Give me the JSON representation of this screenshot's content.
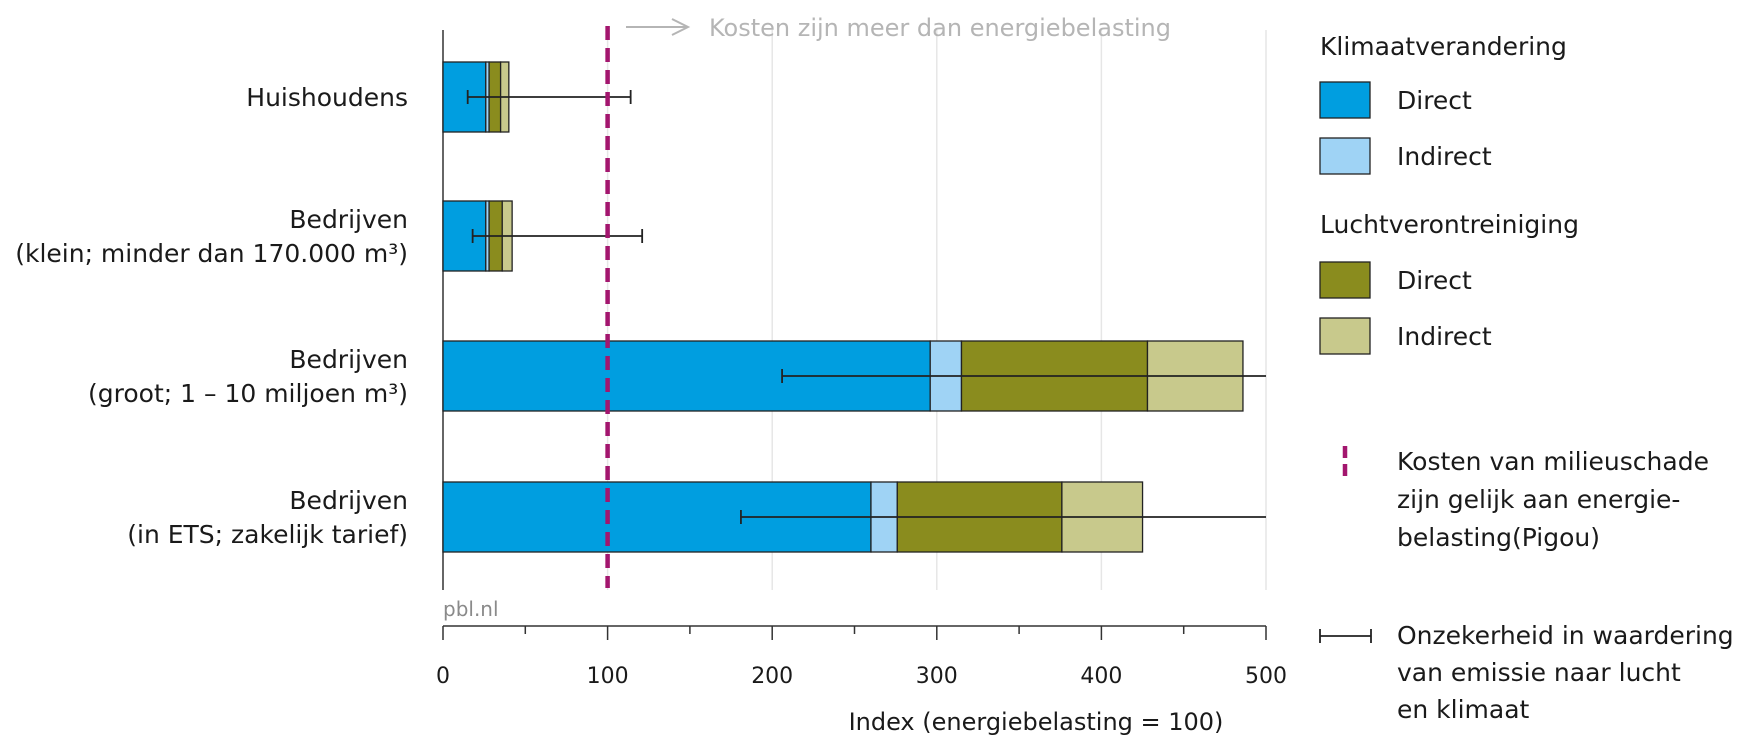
{
  "chart_data": {
    "type": "bar",
    "orientation": "horizontal",
    "stacked": true,
    "categories": [
      [
        "Huishoudens"
      ],
      [
        "Bedrijven",
        "(klein; minder dan 170.000 m³)"
      ],
      [
        "Bedrijven",
        "(groot; 1 – 10 miljoen m³)"
      ],
      [
        "Bedrijven",
        "(in ETS; zakelijk tarief)"
      ]
    ],
    "series": [
      {
        "group": "Klimaatverandering",
        "name": "Direct",
        "color": "#009ee0",
        "values": [
          26,
          26,
          296,
          260
        ]
      },
      {
        "group": "Klimaatverandering",
        "name": "Indirect",
        "color": "#9fd3f5",
        "values": [
          2,
          2,
          19,
          16
        ]
      },
      {
        "group": "Luchtverontreiniging",
        "name": "Direct",
        "color": "#8a8c1e",
        "values": [
          7,
          8,
          113,
          100
        ]
      },
      {
        "group": "Luchtverontreiniging",
        "name": "Indirect",
        "color": "#c8c98c",
        "values": [
          5,
          6,
          58,
          49
        ]
      }
    ],
    "error_bars": [
      [
        15,
        114
      ],
      [
        18,
        121
      ],
      [
        206,
        500
      ],
      [
        181,
        500
      ]
    ],
    "reference_line": {
      "value": 100,
      "color": "#a3166e",
      "style": "dashed"
    },
    "annotation": "Kosten zijn meer dan energiebelasting",
    "xlabel": "Index (energiebelasting = 100)",
    "ylabel": "",
    "xlim": [
      0,
      500
    ],
    "xticks": [
      0,
      100,
      200,
      300,
      400,
      500
    ],
    "xtick_labels": [
      "0",
      "100",
      "200",
      "300",
      "400",
      "500"
    ],
    "grid": "vertical",
    "source": "pbl.nl",
    "legend": {
      "placement": "right",
      "groups": [
        {
          "title": "Klimaatverandering",
          "items": [
            "Direct",
            "Indirect"
          ]
        },
        {
          "title": "Luchtverontreiniging",
          "items": [
            "Direct",
            "Indirect"
          ]
        }
      ],
      "reference_line_label": [
        "Kosten van milieuschade",
        "zijn gelijk aan energie-",
        "belasting(Pigou)"
      ],
      "error_bar_label": [
        "Onzekerheid in waardering",
        "van emissie naar lucht",
        "en klimaat"
      ]
    }
  }
}
